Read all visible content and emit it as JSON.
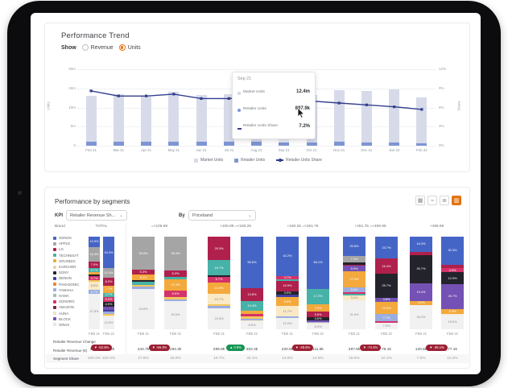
{
  "accent": "#e4720e",
  "trend": {
    "title": "Performance Trend",
    "show_label": "Show",
    "options": [
      {
        "label": "Revenue",
        "selected": false
      },
      {
        "label": "Units",
        "selected": true
      }
    ],
    "y_left": {
      "title": "Units",
      "ticks": [
        "20m",
        "15m",
        "10m",
        "5m",
        "0"
      ],
      "max": 20
    },
    "y_right": {
      "title": "Share",
      "ticks": [
        "12%",
        "9%",
        "6%",
        "3%",
        "0%"
      ],
      "max": 12
    },
    "legend": [
      "Market Units",
      "Retailer Units",
      "Retailer Units Share"
    ],
    "tooltip": {
      "title": "Sep 21",
      "rows": [
        {
          "name": "Market Units",
          "value": "12.4m"
        },
        {
          "name": "Retailer Units",
          "value": "897.9k"
        },
        {
          "name": "Retailer Units Share",
          "value": "7.2%"
        }
      ]
    },
    "chart_data": {
      "type": "bar+line",
      "x": [
        "Feb 21",
        "Mar 21",
        "Apr 21",
        "May 21",
        "Jun 21",
        "Jul 21",
        "Aug 21",
        "Sep 21",
        "Oct 21",
        "Nov 21",
        "Dec 21",
        "Jan 22",
        "Feb 22"
      ],
      "series": [
        {
          "name": "Market Units (m)",
          "type": "bar",
          "values": [
            13.0,
            13.4,
            12.8,
            14.2,
            13.2,
            13.4,
            12.8,
            12.4,
            13.2,
            14.6,
            14.4,
            14.8,
            12.6
          ]
        },
        {
          "name": "Retailer Units (m)",
          "type": "bar",
          "values": [
            1.12,
            1.05,
            0.99,
            1.15,
            0.98,
            0.99,
            0.97,
            0.9,
            0.92,
            0.98,
            0.92,
            0.9,
            0.72
          ]
        },
        {
          "name": "Retailer Units Share (%)",
          "type": "line",
          "values": [
            8.6,
            7.8,
            7.8,
            8.1,
            7.4,
            7.4,
            7.6,
            7.2,
            7.0,
            6.7,
            6.4,
            6.1,
            5.7
          ]
        }
      ],
      "highlight_index": 7,
      "ylim_left": [
        0,
        20
      ],
      "ylim_right": [
        0,
        12
      ],
      "grid": true,
      "legend_position": "bottom"
    }
  },
  "segments": {
    "title": "Performance by segments",
    "kpi_label": "KPI",
    "kpi_value": "Retailer Revenue Sh...",
    "by_label": "By",
    "by_value": "Priceband",
    "columns": {
      "brand": "Brand",
      "total": "TOTAL"
    },
    "icons": [
      {
        "name": "table-icon",
        "glyph": "▦",
        "active": false
      },
      {
        "name": "trend-chart-icon",
        "glyph": "⌁",
        "active": false
      },
      {
        "name": "horizontal-bars-icon",
        "glyph": "≣",
        "active": false
      },
      {
        "name": "stacked-chart-icon",
        "glyph": "▥",
        "active": true
      }
    ],
    "rows": {
      "change": "Retailer Revenue Change",
      "revenue": "Retailer Revenue (€)",
      "share": "Segment Share"
    },
    "bar_labels": [
      "FEB 21",
      "FEB 22"
    ],
    "palette": {
      "SONOS": {
        "color": "#4565c6",
        "light": false
      },
      "APPLE": {
        "color": "#a5a5a5",
        "light": false
      },
      "LG": {
        "color": "#b0204c",
        "light": false
      },
      "TECHNISAT": {
        "color": "#47b2a8",
        "light": false
      },
      "GRUNDIG": {
        "color": "#f3a93c",
        "light": false
      },
      "KARCHER": {
        "color": "#f4c65e",
        "light": true
      },
      "SONY": {
        "color": "#23232b",
        "light": false
      },
      "DENON": {
        "color": "#41419e",
        "light": false
      },
      "PANASONIC": {
        "color": "#ee8434",
        "light": false
      },
      "YAMAHA": {
        "color": "#9aade0",
        "light": false
      },
      "HAMA": {
        "color": "#9fbfae",
        "light": false
      },
      "SONORO": {
        "color": "#d43268",
        "light": false
      },
      "AMAZON": {
        "color": "#7c2535",
        "light": false
      },
      "AUNA": {
        "color": "#fae9c6",
        "light": true
      },
      "BLOCK": {
        "color": "#7451b4",
        "light": false
      },
      "Others": {
        "color": "#f1f1f1",
        "light": true
      }
    },
    "brands": [
      "SONOS",
      "APPLE",
      "LG",
      "TECHNISAT",
      "GRUNDIG",
      "KARCHER",
      "SONY",
      "DENON",
      "PANASONIC",
      "YAMAHA",
      "HAMA",
      "SONORO",
      "AMAZON",
      "AUNA",
      "BLOCK",
      "Others"
    ],
    "chart_data": {
      "type": "stacked-100-bar",
      "groups": [
        {
          "header": "TOTAL",
          "change": "-52.5%",
          "direction": "down",
          "values": [
            "1.6m",
            "754.2k"
          ],
          "shares": [
            "100.0%",
            "100.0%"
          ],
          "bars": [
            [
              [
                "SONOS",
                10.9
              ],
              [
                "APPLE",
                16.3
              ],
              [
                "LG",
                7.0
              ],
              [
                "TECHNISAT",
                3.7
              ],
              [
                "GRUNDIG",
                3.3
              ],
              [
                "SONY",
                1.8
              ],
              [
                "SONORO",
                3.7
              ],
              [
                "KARCHER",
                2.2
              ],
              [
                "AUNA",
                8.6
              ],
              [
                "YAMAHA",
                4.7
              ],
              [
                "Others",
                37.8
              ]
            ],
            [
              [
                "SONOS",
                34.3
              ],
              [
                "APPLE",
                10.3
              ],
              [
                "LG",
                8.3
              ],
              [
                "GRUNDIG",
                7.7
              ],
              [
                "TECHNISAT",
                4.7
              ],
              [
                "SONORO",
                5.3
              ],
              [
                "SONY",
                4.9
              ],
              [
                "BLOCK",
                3.4
              ],
              [
                "DENON",
                2.1
              ],
              [
                "YAMAHA",
                2.4
              ],
              [
                "KARCHER",
                1.9
              ],
              [
                "AUNA",
                0.8
              ],
              [
                "Others",
                13.9
              ]
            ]
          ]
        },
        {
          "header": "=<105.89",
          "change": "-56.3%",
          "direction": "down",
          "values": [
            "444.7k",
            "194.3k"
          ],
          "shares": [
            "27.8%",
            "25.8%"
          ],
          "bars": [
            [
              [
                "APPLE",
                35.8
              ],
              [
                "LG",
                5.3
              ],
              [
                "GRUNDIG",
                6.2
              ],
              [
                "SONY",
                1.4
              ],
              [
                "TECHNISAT",
                3.3
              ],
              [
                "KARCHER",
                1.7
              ],
              [
                "YAMAHA",
                2.5
              ],
              [
                "Others",
                43.8
              ]
            ],
            [
              [
                "APPLE",
                36.9
              ],
              [
                "LG",
                6.3
              ],
              [
                "TECHNISAT",
                3.0
              ],
              [
                "GRUNDIG",
                12.3
              ],
              [
                "SONORO",
                6.9
              ],
              [
                "KARCHER",
                2.0
              ],
              [
                "YAMAHA",
                2.0
              ],
              [
                "Others",
                30.6
              ]
            ]
          ]
        },
        {
          "header": "+105.89 =<180.25",
          "change": "0.8%",
          "direction": "up",
          "values": [
            "299.9k",
            "302.4k"
          ],
          "shares": [
            "18.7%",
            "40.1%"
          ],
          "bars": [
            [
              [
                "LG",
                25.3
              ],
              [
                "TECHNISAT",
                16.7
              ],
              [
                "SONY",
                1.5
              ],
              [
                "SONORO",
                5.7
              ],
              [
                "GRUNDIG",
                13.0
              ],
              [
                "AUNA",
                10.7
              ],
              [
                "KARCHER",
                2.0
              ],
              [
                "YAMAHA",
                2.5
              ],
              [
                "Others",
                22.6
              ]
            ],
            [
              [
                "SONOS",
                55.8
              ],
              [
                "LG",
                13.8
              ],
              [
                "TECHNISAT",
                10.4
              ],
              [
                "GRUNDIG",
                3.3
              ],
              [
                "SONORO",
                3.2
              ],
              [
                "KARCHER",
                2.1
              ],
              [
                "YAMAHA",
                1.6
              ],
              [
                "AUNA",
                0.9
              ],
              [
                "Others",
                8.9
              ]
            ]
          ]
        },
        {
          "header": "+180.25 =<261.75",
          "change": "-49.5%",
          "direction": "down",
          "values": [
            "220.6k",
            "111.5k"
          ],
          "shares": [
            "13.8%",
            "14.8%"
          ],
          "bars": [
            [
              [
                "SONOS",
                42.2
              ],
              [
                "SONORO",
                3.7
              ],
              [
                "TECHNISAT",
                2.0
              ],
              [
                "LG",
                10.9
              ],
              [
                "SONY",
                3.9
              ],
              [
                "DENON",
                2.5
              ],
              [
                "GRUNDIG",
                9.6
              ],
              [
                "AUNA",
                11.7
              ],
              [
                "YAMAHA",
                1.5
              ],
              [
                "Others",
                12.0
              ]
            ],
            [
              [
                "SONOS",
                56.1
              ],
              [
                "TECHNISAT",
                17.2
              ],
              [
                "GRUNDIG",
                7.9
              ],
              [
                "LG",
                5.6
              ],
              [
                "SONY",
                3.6
              ],
              [
                "BLOCK",
                1.4
              ],
              [
                "YAMAHA",
                1.2
              ],
              [
                "AUNA",
                1.0
              ],
              [
                "Others",
                6.0
              ]
            ]
          ]
        },
        {
          "header": "+261.75 =<499.99",
          "change": "-74.4%",
          "direction": "down",
          "values": [
            "297.5k",
            "76.1k"
          ],
          "shares": [
            "18.6%",
            "10.1%"
          ],
          "bars": [
            [
              [
                "SONOS",
                20.8
              ],
              [
                "APPLE",
                7.3
              ],
              [
                "SONY",
                2.0
              ],
              [
                "LG",
                1.5
              ],
              [
                "BLOCK",
                5.9
              ],
              [
                "GRUNDIG",
                17.0
              ],
              [
                "YAMAHA",
                5.5
              ],
              [
                "SONORO",
                1.5
              ],
              [
                "TECHNISAT",
                2.0
              ],
              [
                "AUNA",
                5.0
              ],
              [
                "Others",
                31.5
              ]
            ],
            [
              [
                "SONOS",
                23.7
              ],
              [
                "LG",
                16.4
              ],
              [
                "SONY",
                25.7
              ],
              [
                "BLOCK",
                4.8
              ],
              [
                "GRUNDIG",
                13.0
              ],
              [
                "YAMAHA",
                7.7
              ],
              [
                "SONORO",
                1.4
              ],
              [
                "Others",
                7.3
              ]
            ]
          ]
        },
        {
          "header": "+499.99",
          "change": "-36.1%",
          "direction": "down",
          "values": [
            "120.6k",
            "77.1k"
          ],
          "shares": [
            "7.5%",
            "10.2%"
          ],
          "bars": [
            [
              [
                "SONOS",
                16.3
              ],
              [
                "LG",
                3.3
              ],
              [
                "SONY",
                30.7
              ],
              [
                "BLOCK",
                19.4
              ],
              [
                "GRUNDIG",
                4.0
              ],
              [
                "Others",
                26.3
              ]
            ],
            [
              [
                "SONOS",
                30.3
              ],
              [
                "LG",
                3.3
              ],
              [
                "SONORO",
                4.9
              ],
              [
                "SONY",
                12.9
              ],
              [
                "BLOCK",
                26.7
              ],
              [
                "GRUNDIG",
                5.3
              ],
              [
                "AUNA",
                1.0
              ],
              [
                "Others",
                15.6
              ]
            ]
          ]
        }
      ]
    }
  }
}
